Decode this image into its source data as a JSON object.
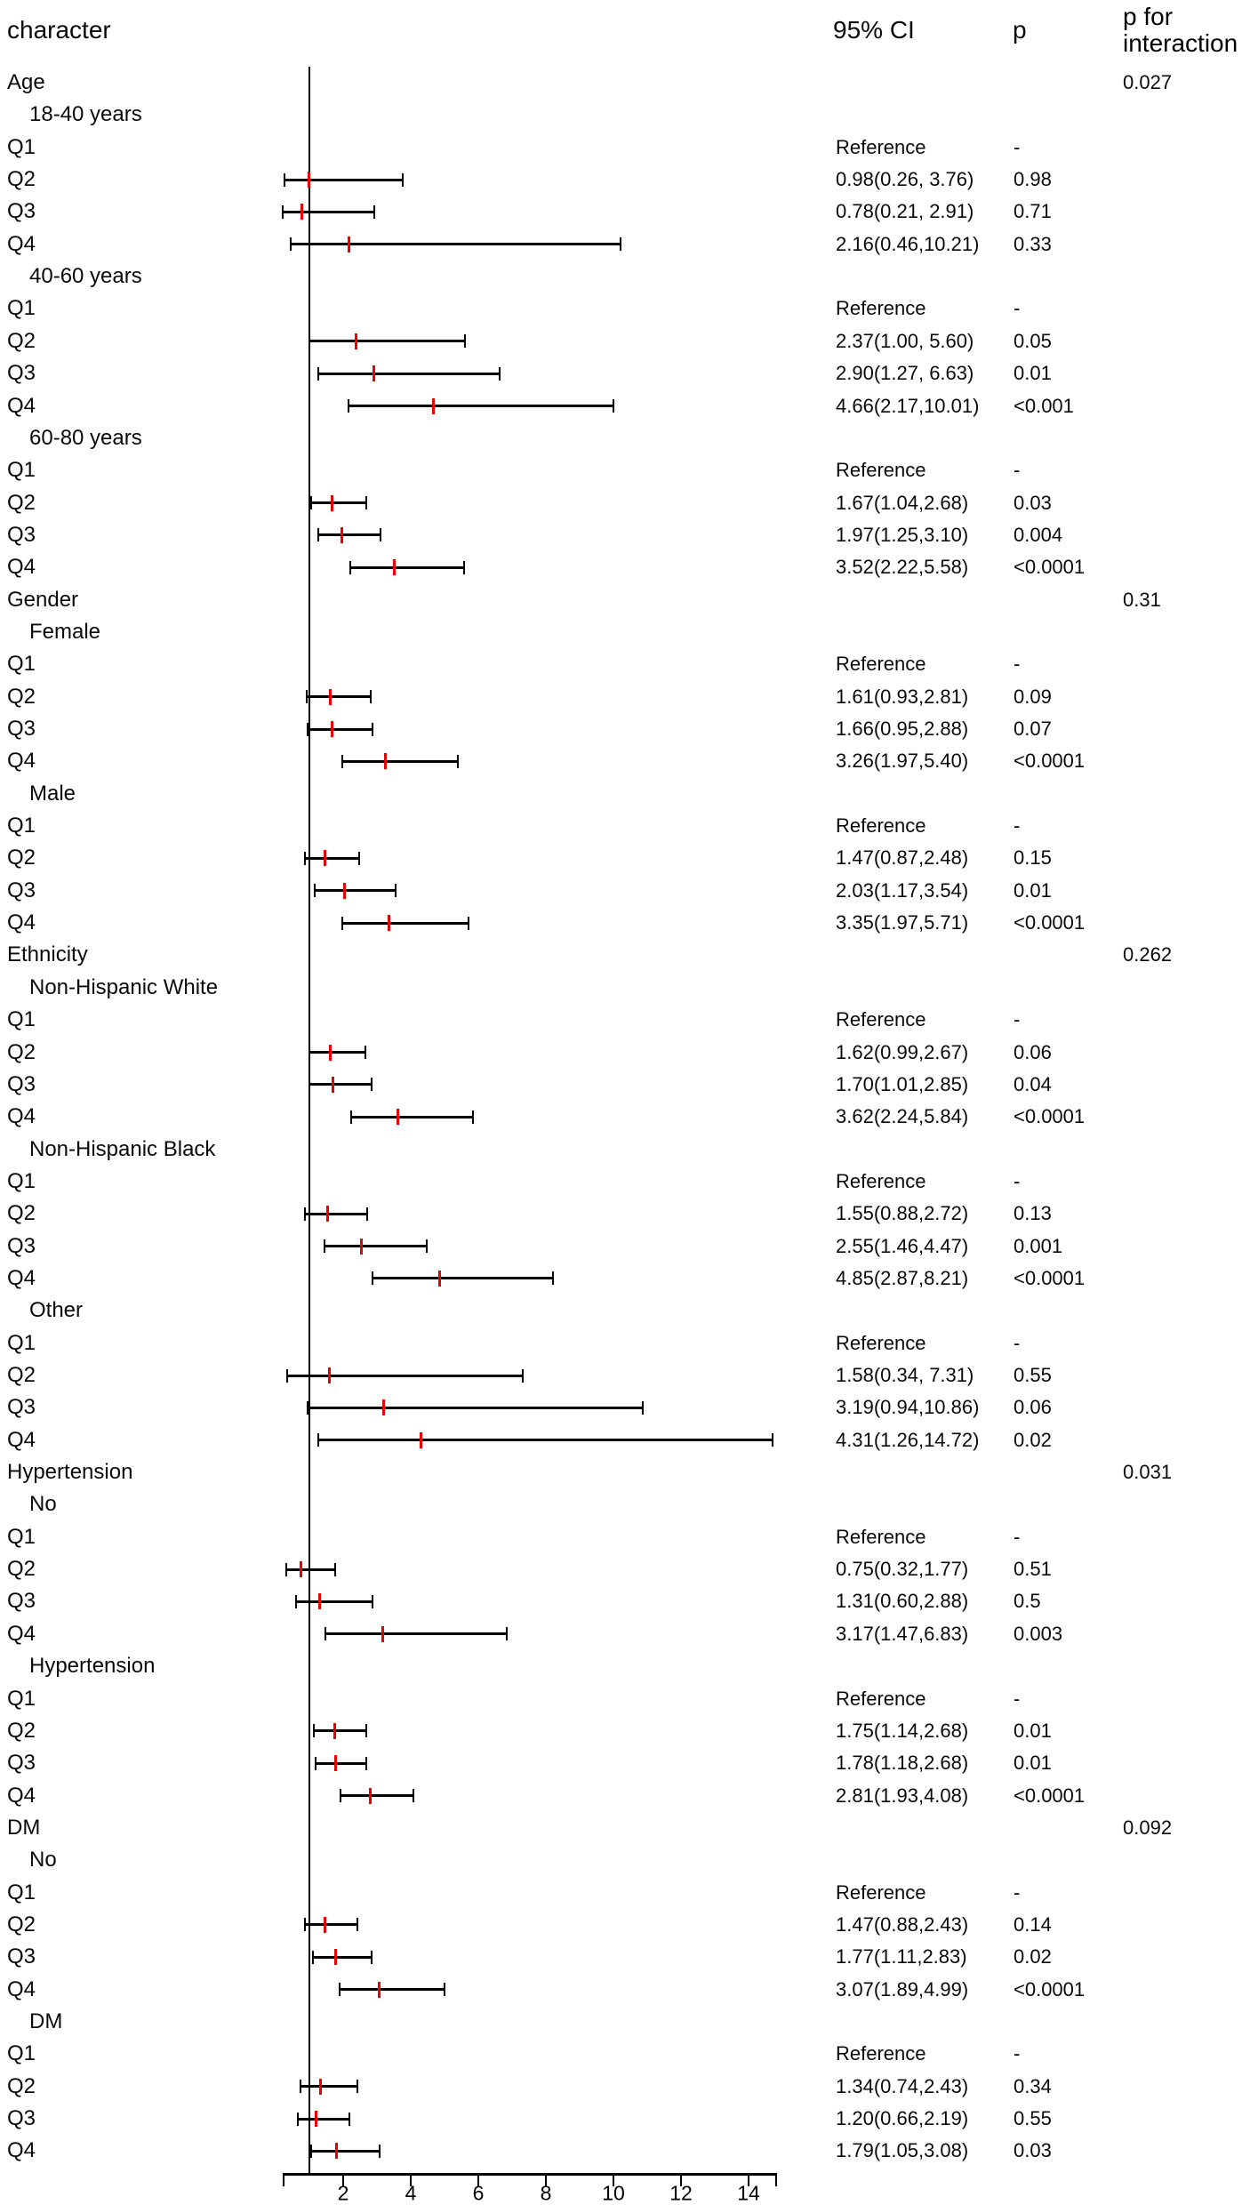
{
  "header": {
    "character": "character",
    "ci": "95% CI",
    "p": "p",
    "p_for_interaction": "p for interaction"
  },
  "colors": {
    "marker_red": "#e60000",
    "line_black": "#000000"
  },
  "chart_data": {
    "type": "forest",
    "title": "",
    "columns": [
      "character",
      "95% CI",
      "p",
      "p for interaction"
    ],
    "xlim": [
      0.2,
      14.8
    ],
    "x_ticks": [
      2,
      4,
      6,
      8,
      10,
      12,
      14
    ],
    "reference_value": 1,
    "grid": false,
    "rows": [
      {
        "label": "Age",
        "kind": "section",
        "p_interaction": "0.027"
      },
      {
        "label": "18-40 years",
        "kind": "subgroup"
      },
      {
        "label": "Q1",
        "kind": "item",
        "ci_text": "Reference",
        "p": "-"
      },
      {
        "label": "Q2",
        "kind": "item",
        "est": 0.98,
        "lo": 0.26,
        "hi": 3.76,
        "ci_text": "0.98(0.26, 3.76)",
        "p": "0.98"
      },
      {
        "label": "Q3",
        "kind": "item",
        "est": 0.78,
        "lo": 0.21,
        "hi": 2.91,
        "ci_text": "0.78(0.21, 2.91)",
        "p": "0.71"
      },
      {
        "label": "Q4",
        "kind": "item",
        "est": 2.16,
        "lo": 0.46,
        "hi": 10.21,
        "ci_text": "2.16(0.46,10.21)",
        "p": "0.33"
      },
      {
        "label": "40-60 years",
        "kind": "subgroup"
      },
      {
        "label": "Q1",
        "kind": "item",
        "ci_text": "Reference",
        "p": "-"
      },
      {
        "label": "Q2",
        "kind": "item",
        "est": 2.37,
        "lo": 1.0,
        "hi": 5.6,
        "ci_text": "2.37(1.00, 5.60)",
        "p": "0.05"
      },
      {
        "label": "Q3",
        "kind": "item",
        "est": 2.9,
        "lo": 1.27,
        "hi": 6.63,
        "ci_text": "2.90(1.27, 6.63)",
        "p": "0.01"
      },
      {
        "label": "Q4",
        "kind": "item",
        "est": 4.66,
        "lo": 2.17,
        "hi": 10.01,
        "ci_text": "4.66(2.17,10.01)",
        "p": "<0.001"
      },
      {
        "label": "60-80 years",
        "kind": "subgroup"
      },
      {
        "label": "Q1",
        "kind": "item",
        "ci_text": "Reference",
        "p": "-"
      },
      {
        "label": "Q2",
        "kind": "item",
        "est": 1.67,
        "lo": 1.04,
        "hi": 2.68,
        "ci_text": "1.67(1.04,2.68)",
        "p": "0.03"
      },
      {
        "label": "Q3",
        "kind": "item",
        "est": 1.97,
        "lo": 1.25,
        "hi": 3.1,
        "ci_text": "1.97(1.25,3.10)",
        "p": "0.004"
      },
      {
        "label": "Q4",
        "kind": "item",
        "est": 3.52,
        "lo": 2.22,
        "hi": 5.58,
        "ci_text": "3.52(2.22,5.58)",
        "p": "<0.0001"
      },
      {
        "label": "Gender",
        "kind": "section",
        "p_interaction": "0.31"
      },
      {
        "label": "Female",
        "kind": "subgroup"
      },
      {
        "label": "Q1",
        "kind": "item",
        "ci_text": "Reference",
        "p": "-"
      },
      {
        "label": "Q2",
        "kind": "item",
        "est": 1.61,
        "lo": 0.93,
        "hi": 2.81,
        "ci_text": "1.61(0.93,2.81)",
        "p": "0.09"
      },
      {
        "label": "Q3",
        "kind": "item",
        "est": 1.66,
        "lo": 0.95,
        "hi": 2.88,
        "ci_text": "1.66(0.95,2.88)",
        "p": "0.07"
      },
      {
        "label": "Q4",
        "kind": "item",
        "est": 3.26,
        "lo": 1.97,
        "hi": 5.4,
        "ci_text": "3.26(1.97,5.40)",
        "p": "<0.0001"
      },
      {
        "label": "Male",
        "kind": "subgroup"
      },
      {
        "label": "Q1",
        "kind": "item",
        "ci_text": "Reference",
        "p": "-"
      },
      {
        "label": "Q2",
        "kind": "item",
        "est": 1.47,
        "lo": 0.87,
        "hi": 2.48,
        "ci_text": "1.47(0.87,2.48)",
        "p": "0.15"
      },
      {
        "label": "Q3",
        "kind": "item",
        "est": 2.03,
        "lo": 1.17,
        "hi": 3.54,
        "ci_text": "2.03(1.17,3.54)",
        "p": "0.01"
      },
      {
        "label": "Q4",
        "kind": "item",
        "est": 3.35,
        "lo": 1.97,
        "hi": 5.71,
        "ci_text": "3.35(1.97,5.71)",
        "p": "<0.0001"
      },
      {
        "label": "Ethnicity",
        "kind": "section",
        "p_interaction": "0.262"
      },
      {
        "label": "Non-Hispanic White",
        "kind": "subgroup"
      },
      {
        "label": "Q1",
        "kind": "item",
        "ci_text": "Reference",
        "p": "-"
      },
      {
        "label": "Q2",
        "kind": "item",
        "est": 1.62,
        "lo": 0.99,
        "hi": 2.67,
        "ci_text": "1.62(0.99,2.67)",
        "p": "0.06"
      },
      {
        "label": "Q3",
        "kind": "item",
        "est": 1.7,
        "lo": 1.01,
        "hi": 2.85,
        "ci_text": "1.70(1.01,2.85)",
        "p": "0.04"
      },
      {
        "label": "Q4",
        "kind": "item",
        "est": 3.62,
        "lo": 2.24,
        "hi": 5.84,
        "ci_text": "3.62(2.24,5.84)",
        "p": "<0.0001"
      },
      {
        "label": "Non-Hispanic Black",
        "kind": "subgroup"
      },
      {
        "label": "Q1",
        "kind": "item",
        "ci_text": "Reference",
        "p": "-"
      },
      {
        "label": "Q2",
        "kind": "item",
        "est": 1.55,
        "lo": 0.88,
        "hi": 2.72,
        "ci_text": "1.55(0.88,2.72)",
        "p": "0.13"
      },
      {
        "label": "Q3",
        "kind": "item",
        "est": 2.55,
        "lo": 1.46,
        "hi": 4.47,
        "ci_text": "2.55(1.46,4.47)",
        "p": "0.001"
      },
      {
        "label": "Q4",
        "kind": "item",
        "est": 4.85,
        "lo": 2.87,
        "hi": 8.21,
        "ci_text": "4.85(2.87,8.21)",
        "p": "<0.0001"
      },
      {
        "label": "Other",
        "kind": "subgroup"
      },
      {
        "label": "Q1",
        "kind": "item",
        "ci_text": "Reference",
        "p": "-"
      },
      {
        "label": "Q2",
        "kind": "item",
        "est": 1.58,
        "lo": 0.34,
        "hi": 7.31,
        "ci_text": "1.58(0.34, 7.31)",
        "p": "0.55"
      },
      {
        "label": "Q3",
        "kind": "item",
        "est": 3.19,
        "lo": 0.94,
        "hi": 10.86,
        "ci_text": "3.19(0.94,10.86)",
        "p": "0.06"
      },
      {
        "label": "Q4",
        "kind": "item",
        "est": 4.31,
        "lo": 1.26,
        "hi": 14.72,
        "ci_text": "4.31(1.26,14.72)",
        "p": "0.02"
      },
      {
        "label": "Hypertension",
        "kind": "section",
        "p_interaction": "0.031"
      },
      {
        "label": "No",
        "kind": "subgroup"
      },
      {
        "label": "Q1",
        "kind": "item",
        "ci_text": "Reference",
        "p": "-"
      },
      {
        "label": "Q2",
        "kind": "item",
        "est": 0.75,
        "lo": 0.32,
        "hi": 1.77,
        "ci_text": "0.75(0.32,1.77)",
        "p": "0.51"
      },
      {
        "label": "Q3",
        "kind": "item",
        "est": 1.31,
        "lo": 0.6,
        "hi": 2.88,
        "ci_text": "1.31(0.60,2.88)",
        "p": "0.5"
      },
      {
        "label": "Q4",
        "kind": "item",
        "est": 3.17,
        "lo": 1.47,
        "hi": 6.83,
        "ci_text": "3.17(1.47,6.83)",
        "p": "0.003"
      },
      {
        "label": "Hypertension",
        "kind": "subgroup"
      },
      {
        "label": "Q1",
        "kind": "item",
        "ci_text": "Reference",
        "p": "-"
      },
      {
        "label": "Q2",
        "kind": "item",
        "est": 1.75,
        "lo": 1.14,
        "hi": 2.68,
        "ci_text": "1.75(1.14,2.68)",
        "p": "0.01"
      },
      {
        "label": "Q3",
        "kind": "item",
        "est": 1.78,
        "lo": 1.18,
        "hi": 2.68,
        "ci_text": "1.78(1.18,2.68)",
        "p": "0.01"
      },
      {
        "label": "Q4",
        "kind": "item",
        "est": 2.81,
        "lo": 1.93,
        "hi": 4.08,
        "ci_text": "2.81(1.93,4.08)",
        "p": "<0.0001"
      },
      {
        "label": "DM",
        "kind": "section",
        "p_interaction": "0.092"
      },
      {
        "label": "No",
        "kind": "subgroup"
      },
      {
        "label": "Q1",
        "kind": "item",
        "ci_text": "Reference",
        "p": "-"
      },
      {
        "label": "Q2",
        "kind": "item",
        "est": 1.47,
        "lo": 0.88,
        "hi": 2.43,
        "ci_text": "1.47(0.88,2.43)",
        "p": "0.14"
      },
      {
        "label": "Q3",
        "kind": "item",
        "est": 1.77,
        "lo": 1.11,
        "hi": 2.83,
        "ci_text": "1.77(1.11,2.83)",
        "p": "0.02"
      },
      {
        "label": "Q4",
        "kind": "item",
        "est": 3.07,
        "lo": 1.89,
        "hi": 4.99,
        "ci_text": "3.07(1.89,4.99)",
        "p": "<0.0001"
      },
      {
        "label": "DM",
        "kind": "subgroup"
      },
      {
        "label": "Q1",
        "kind": "item",
        "ci_text": "Reference",
        "p": "-"
      },
      {
        "label": "Q2",
        "kind": "item",
        "est": 1.34,
        "lo": 0.74,
        "hi": 2.43,
        "ci_text": "1.34(0.74,2.43)",
        "p": "0.34"
      },
      {
        "label": "Q3",
        "kind": "item",
        "est": 1.2,
        "lo": 0.66,
        "hi": 2.19,
        "ci_text": "1.20(0.66,2.19)",
        "p": "0.55"
      },
      {
        "label": "Q4",
        "kind": "item",
        "est": 1.79,
        "lo": 1.05,
        "hi": 3.08,
        "ci_text": "1.79(1.05,3.08)",
        "p": "0.03"
      }
    ]
  }
}
